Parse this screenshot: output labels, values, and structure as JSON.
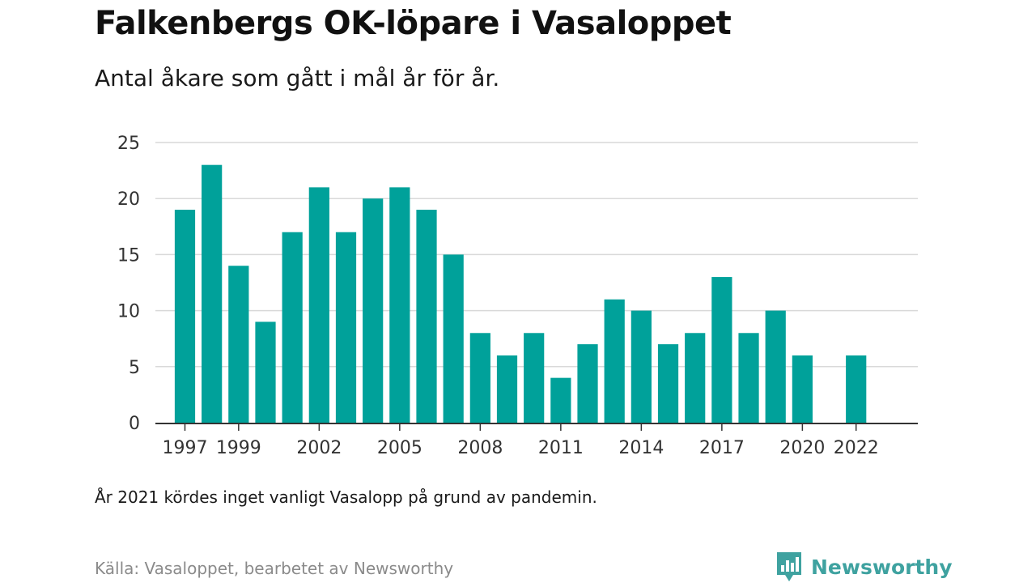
{
  "header": {
    "title": "Falkenbergs OK-löpare i Vasaloppet",
    "subtitle": "Antal åkare som gått i mål år för år."
  },
  "footer": {
    "note": "År 2021 kördes inget vanligt Vasalopp på grund av pandemin.",
    "source": "Källa: Vasaloppet, bearbetet av Newsworthy",
    "brand": "Newsworthy",
    "brand_icon": "newsworthy-logo-icon"
  },
  "colors": {
    "bar": "#00a19a",
    "grid": "#d9d9d9",
    "axis": "#333333",
    "brand": "#3fa2a0"
  },
  "chart_data": {
    "type": "bar",
    "title": "Falkenbergs OK-löpare i Vasaloppet",
    "subtitle": "Antal åkare som gått i mål år för år.",
    "xlabel": "",
    "ylabel": "",
    "x": [
      1997,
      1998,
      1999,
      2000,
      2001,
      2002,
      2003,
      2004,
      2005,
      2006,
      2007,
      2008,
      2009,
      2010,
      2011,
      2012,
      2013,
      2014,
      2015,
      2016,
      2017,
      2018,
      2019,
      2020,
      2021,
      2022
    ],
    "values": [
      19,
      23,
      14,
      9,
      17,
      21,
      17,
      20,
      21,
      19,
      15,
      8,
      6,
      8,
      4,
      7,
      11,
      10,
      7,
      8,
      13,
      8,
      10,
      6,
      null,
      6
    ],
    "x_ticks": [
      1997,
      1999,
      2002,
      2005,
      2008,
      2011,
      2014,
      2017,
      2020,
      2022
    ],
    "y_ticks": [
      0,
      5,
      10,
      15,
      20,
      25
    ],
    "ylim": [
      0,
      25
    ],
    "xlim": [
      1995.9,
      2024.3
    ],
    "grid": true,
    "legend": "none"
  }
}
